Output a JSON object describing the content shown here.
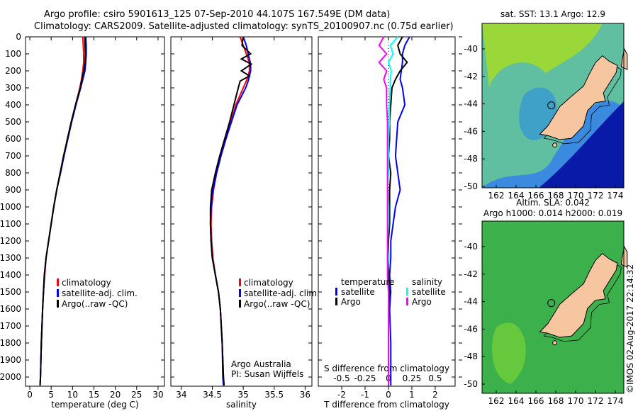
{
  "title_line1": "Argo profile: csiro 5901613_125 07-Sep-2010 44.107S 167.549E (DM data)",
  "title_line2": "Climatology: CARS2009. Satellite-adjusted climatology: synTS_20100907.nc (0.75d earlier)",
  "colors": {
    "climatology": "#ff0000",
    "satellite": "#0000ff",
    "argo": "#000000",
    "sal_satellite": "#00ffff",
    "sal_argo": "#ff00ff",
    "land": "#f5c6a0"
  },
  "chart_data": [
    {
      "type": "line",
      "xlabel": "temperature (deg C)",
      "xlim": [
        -1,
        31.5
      ],
      "xticks": [
        0,
        5,
        10,
        15,
        20,
        25,
        30
      ],
      "ylim": [
        0,
        2054
      ],
      "yticks": [
        0,
        100,
        200,
        300,
        400,
        500,
        600,
        700,
        800,
        900,
        1000,
        1100,
        1200,
        1300,
        1400,
        1500,
        1600,
        1700,
        1800,
        1900,
        2000
      ],
      "depth": [
        0,
        50,
        100,
        150,
        200,
        250,
        300,
        400,
        500,
        600,
        700,
        800,
        900,
        1000,
        1100,
        1200,
        1300,
        1400,
        1500,
        1600,
        1800,
        2000,
        2050
      ],
      "legend": [
        "climatology",
        "satellite-adj. clim.",
        "Argo(..raw -QC)"
      ],
      "series": [
        {
          "name": "climatology",
          "color": "#ff0000",
          "values": [
            12.4,
            12.5,
            12.6,
            12.6,
            12.4,
            12.1,
            11.7,
            10.7,
            9.7,
            8.8,
            8.0,
            7.1,
            6.3,
            5.6,
            5.0,
            4.4,
            3.8,
            3.5,
            3.2,
            3.0,
            2.7,
            2.5,
            2.4
          ]
        },
        {
          "name": "satellite-adj. clim.",
          "color": "#0000ff",
          "values": [
            13.1,
            13.2,
            13.2,
            13.1,
            12.9,
            12.4,
            11.9,
            10.8,
            9.8,
            8.9,
            8.0,
            7.2,
            6.3,
            5.6,
            5.0,
            4.4,
            3.8,
            3.4,
            3.2,
            3.0,
            2.7,
            2.5,
            2.4
          ]
        },
        {
          "name": "Argo(..raw -QC)",
          "color": "#000000",
          "values": [
            12.9,
            12.9,
            13.0,
            12.9,
            12.6,
            12.2,
            11.8,
            10.7,
            9.7,
            8.8,
            7.9,
            7.1,
            6.3,
            5.6,
            5.0,
            4.4,
            3.8,
            3.4,
            3.2,
            3.0,
            2.7,
            2.5,
            2.4
          ]
        }
      ]
    },
    {
      "type": "line",
      "xlabel": "salinity",
      "xlim": [
        33.83,
        36.11
      ],
      "xticks": [
        34,
        34.5,
        35,
        35.5,
        36
      ],
      "ylim": [
        0,
        2054
      ],
      "depth": [
        0,
        50,
        100,
        130,
        160,
        200,
        230,
        260,
        300,
        400,
        500,
        600,
        700,
        800,
        900,
        1000,
        1100,
        1200,
        1300,
        1400,
        1500,
        1600,
        1800,
        2000,
        2050
      ],
      "legend": [
        "climatology",
        "satellite-adj. clim.",
        "Argo(..raw -QC)"
      ],
      "annotation": [
        "Argo Australia",
        "PI: Susan Wijffels"
      ],
      "series": [
        {
          "name": "climatology",
          "color": "#ff0000",
          "values": [
            34.95,
            35.0,
            35.05,
            35.08,
            35.1,
            35.1,
            35.08,
            35.05,
            35.0,
            34.88,
            34.8,
            34.72,
            34.64,
            34.57,
            34.52,
            34.49,
            34.48,
            34.49,
            34.51,
            34.55,
            34.6,
            34.63,
            34.66,
            34.68,
            34.69
          ]
        },
        {
          "name": "satellite-adj. clim.",
          "color": "#0000ff",
          "values": [
            35.0,
            35.05,
            35.08,
            35.1,
            35.12,
            35.12,
            35.1,
            35.08,
            35.04,
            34.9,
            34.81,
            34.72,
            34.64,
            34.57,
            34.51,
            34.48,
            34.47,
            34.48,
            34.5,
            34.55,
            34.6,
            34.63,
            34.66,
            34.67,
            34.68
          ]
        },
        {
          "name": "Argo(..raw -QC)",
          "color": "#000000",
          "values": [
            35.0,
            34.98,
            35.12,
            34.97,
            35.13,
            34.97,
            35.1,
            34.95,
            34.92,
            34.85,
            34.78,
            34.7,
            34.62,
            34.55,
            34.49,
            34.47,
            34.47,
            34.48,
            34.5,
            34.55,
            34.6,
            34.63,
            34.66,
            34.68,
            34.69
          ]
        }
      ]
    },
    {
      "type": "line",
      "xlabel": "T difference from climatology",
      "xlim": [
        -3,
        2.85
      ],
      "xticks": [
        -2,
        -1,
        0,
        1,
        2
      ],
      "x2label": "S difference from climatology",
      "x2ticks": [
        -0.5,
        -0.25,
        0,
        0.25,
        0.5
      ],
      "x2ticks_labels": [
        "-0.5",
        "-0.25",
        "0",
        "0.25",
        "0.5"
      ],
      "ylim": [
        0,
        2054
      ],
      "depth": [
        0,
        50,
        100,
        150,
        200,
        250,
        300,
        400,
        500,
        600,
        700,
        800,
        900,
        1000,
        1100,
        1200,
        1300,
        1400,
        1500,
        1600,
        1800,
        2000,
        2050
      ],
      "legend": {
        "temperature": "temperature",
        "salinity": "salinity",
        "t_sat": "satellite",
        "t_argo": "Argo",
        "s_sat": "satellite",
        "s_argo": "Argo"
      },
      "series": [
        {
          "name": "temperature satellite",
          "color": "#0000ff",
          "values": [
            0.9,
            0.7,
            0.6,
            0.6,
            0.55,
            0.5,
            0.6,
            0.7,
            0.4,
            0.35,
            0.3,
            0.4,
            0.5,
            0.3,
            0.2,
            0.1,
            0.1,
            0.05,
            0.1,
            0.05,
            0.1,
            0.1,
            0.1
          ]
        },
        {
          "name": "temperature Argo",
          "color": "#000000",
          "values": [
            0.6,
            0.4,
            0.5,
            0.8,
            0.5,
            0.3,
            0.15,
            0.1,
            0.05,
            0.05,
            0.0,
            0.1,
            0.05,
            0.05,
            0.05,
            0.0,
            0.0,
            0.0,
            0.05,
            0.0,
            0.0,
            0.0,
            0.0
          ]
        },
        {
          "name": "salinity satellite",
          "color": "#00ffff",
          "values": [
            0.1,
            0.02,
            0.05,
            0.0,
            0.03,
            0.02,
            0.02,
            0.01,
            0.01,
            0.0,
            0.0,
            0.0,
            -0.01,
            0.0,
            0.0,
            -0.01,
            0.0,
            -0.01,
            0.0,
            0.0,
            0.0,
            0.0,
            0.0
          ]
        },
        {
          "name": "salinity Argo",
          "color": "#ff00ff",
          "values": [
            -0.05,
            -0.1,
            -0.02,
            -0.1,
            -0.02,
            -0.05,
            -0.02,
            -0.02,
            -0.01,
            -0.01,
            -0.01,
            -0.01,
            -0.01,
            -0.01,
            -0.01,
            -0.01,
            -0.01,
            -0.01,
            0.0,
            0.0,
            0.0,
            0.0,
            0.0
          ]
        }
      ]
    }
  ],
  "map_sst": {
    "title": "sat. SST: 13.1 Argo: 12.9",
    "xticks": [
      "162",
      "164",
      "166",
      "168",
      "170",
      "172",
      "174"
    ],
    "yticks": [
      "-40",
      "-42",
      "-44",
      "-46",
      "-48",
      "-50"
    ],
    "argo_lon": 167.549,
    "argo_lat": -44.107
  },
  "map_sla": {
    "title1": "Altim. SLA: 0.042",
    "title2": "Argo h1000: 0.014 h2000: 0.019",
    "xticks": [
      "162",
      "164",
      "166",
      "168",
      "170",
      "172",
      "174"
    ],
    "yticks": [
      "-40",
      "-42",
      "-44",
      "-46",
      "-48",
      "-50"
    ]
  },
  "credit": "©IMOS 02-Aug-2017 22:14:32"
}
